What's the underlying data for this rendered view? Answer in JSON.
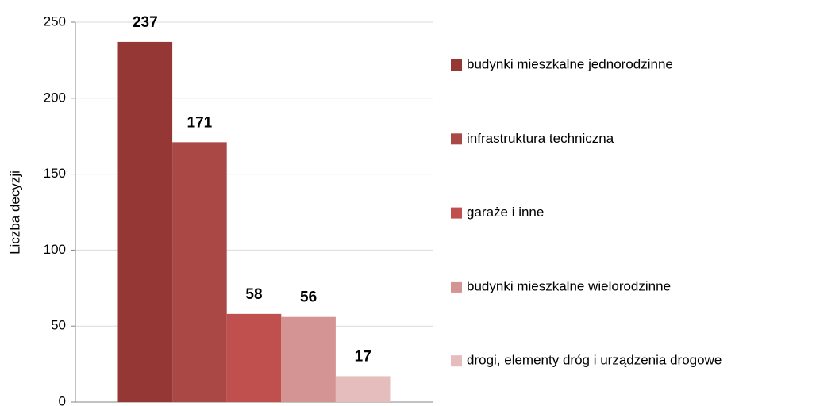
{
  "chart_data": {
    "type": "bar",
    "y_label": "Liczba decyzji",
    "categories": [
      null
    ],
    "series": [
      {
        "name": "budynki mieszkalne jednorodzinne",
        "color": "#953735",
        "values": [
          237
        ]
      },
      {
        "name": "infrastruktura techniczna",
        "color": "#aa4846",
        "values": [
          171
        ]
      },
      {
        "name": "garaże i inne",
        "color": "#c0504d",
        "values": [
          58
        ]
      },
      {
        "name": "budynki mieszkalne wielorodzinne",
        "color": "#d49493",
        "values": [
          56
        ]
      },
      {
        "name": "drogi, elementy dróg i urządzenia drogowe",
        "color": "#e5bdbc",
        "values": [
          17
        ]
      }
    ],
    "ylim": [
      0,
      250
    ],
    "yticks": [
      0,
      50,
      100,
      150,
      200,
      250
    ],
    "grid": true,
    "legend": "right"
  }
}
